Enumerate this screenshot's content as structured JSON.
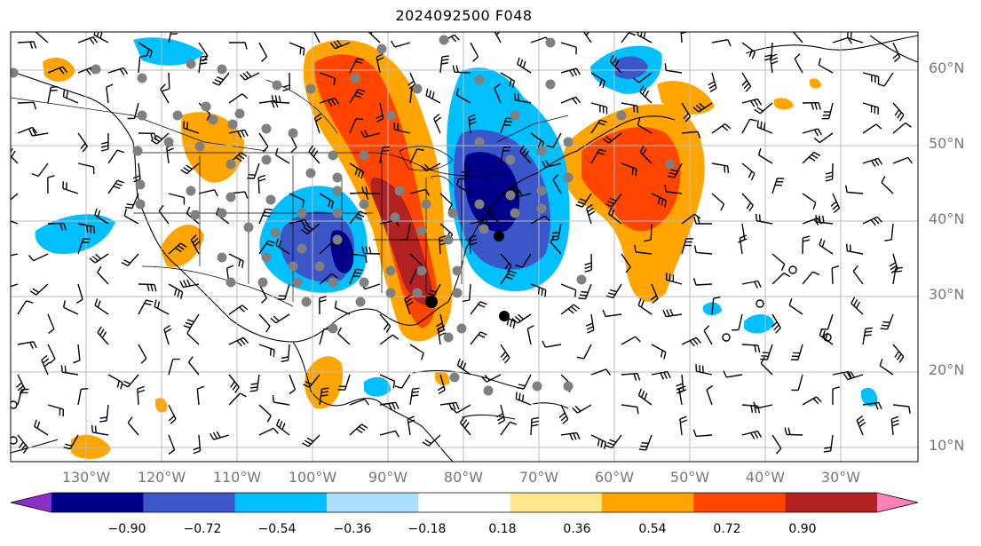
{
  "title": "2024092500 F048",
  "latitude_labels": [
    "60°N",
    "50°N",
    "40°N",
    "30°N",
    "20°N",
    "10°N"
  ],
  "longitude_labels": [
    "130°W",
    "120°W",
    "110°W",
    "100°W",
    "90°W",
    "80°W",
    "70°W",
    "60°W",
    "50°W",
    "40°W",
    "30°W"
  ],
  "colorbar": {
    "ticks": [
      "−0.90",
      "−0.72",
      "−0.54",
      "−0.36",
      "−0.18",
      "0.18",
      "0.36",
      "0.54",
      "0.72",
      "0.90"
    ],
    "colors": [
      "#8b2fc9",
      "#00008b",
      "#3a56c8",
      "#00bfff",
      "#aadfff",
      "#ffffff",
      "#ffe68a",
      "#ffa500",
      "#ff4500",
      "#b22222",
      "#ff82b4"
    ]
  },
  "colors": {
    "coastline": "#000000",
    "grid": "#bbbbbb",
    "station_marker": "#808080"
  }
}
